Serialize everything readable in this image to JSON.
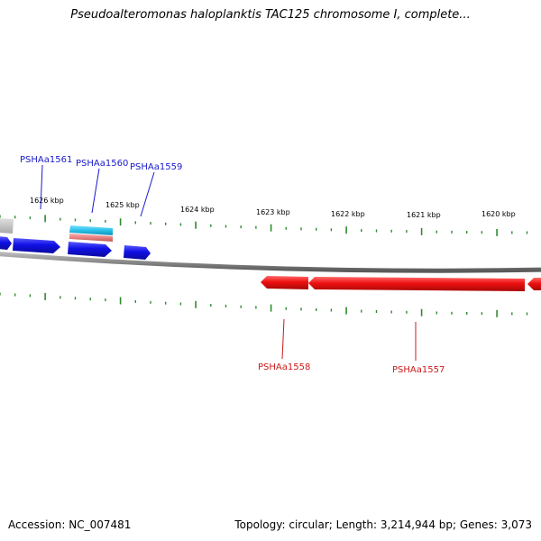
{
  "title": "Pseudoalteromonas haloplanktis TAC125 chromosome I, complete...",
  "accession": "Accession: NC_007481",
  "summary": "Topology: circular; Length: 3,214,944 bp; Genes: 3,073",
  "colors": {
    "backbone": "#808080",
    "tick": "#2e8b2e",
    "forward_gene": "#1010e6",
    "reverse_gene": "#ee1010",
    "cds_feature": "#28c0e8",
    "rna_feature": "#e88080",
    "label_forward": "#1a1acc",
    "label_reverse": "#cc1a1a"
  },
  "scale": {
    "unit": "kbp",
    "labels": [
      "1626 kbp",
      "1625 kbp",
      "1624 kbp",
      "1623 kbp",
      "1622 kbp",
      "1621 kbp",
      "1620 kbp"
    ]
  },
  "genes": [
    {
      "name": "PSHAa1561",
      "strand": "forward"
    },
    {
      "name": "PSHAa1560",
      "strand": "forward"
    },
    {
      "name": "PSHAa1559",
      "strand": "forward"
    },
    {
      "name": "PSHAa1558",
      "strand": "reverse"
    },
    {
      "name": "PSHAa1557",
      "strand": "reverse"
    }
  ]
}
